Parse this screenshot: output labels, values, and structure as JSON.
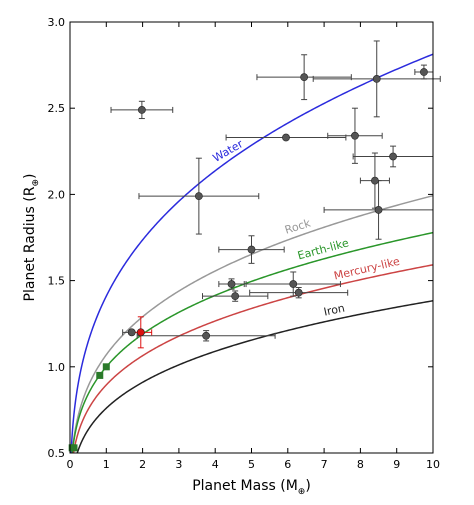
{
  "chart_data": {
    "type": "scatter",
    "xlabel_text": "Planet Mass (M",
    "xlabel_sub": "⊕",
    "xlabel_close": ")",
    "ylabel_text": "Planet Radius (R",
    "ylabel_sub": "⊕",
    "ylabel_close": ")",
    "xlim": [
      0,
      10
    ],
    "ylim": [
      0.5,
      3.0
    ],
    "xticks": [
      0,
      1,
      2,
      3,
      4,
      5,
      6,
      7,
      8,
      9,
      10
    ],
    "xtick_labels": [
      "0",
      "1",
      "2",
      "3",
      "4",
      "5",
      "6",
      "7",
      "8",
      "9",
      "10"
    ],
    "yticks": [
      0.5,
      1.0,
      1.5,
      2.0,
      2.5,
      3.0
    ],
    "ytick_labels": [
      "0.5",
      "1.0",
      "1.5",
      "2.0",
      "2.5",
      "3.0"
    ],
    "grid": false,
    "curves": [
      {
        "name": "Water",
        "color": "#2b2bdd",
        "coef": 1.41,
        "exponent": 0.3,
        "label_x": 4.4,
        "label_angle": -30
      },
      {
        "name": "Rock",
        "color": "#999999",
        "coef": 1.07,
        "exponent": 0.27,
        "label_x": 6.3,
        "label_angle": -17
      },
      {
        "name": "Earth-like",
        "color": "#2a962a",
        "coef": 1.0,
        "exponent": 0.25,
        "label_x": 7.0,
        "label_angle": -15
      },
      {
        "name": "Mercury-like",
        "color": "#cc4444",
        "coef": 0.895,
        "exponent": 0.25,
        "label_x": 8.2,
        "label_angle": -13
      },
      {
        "name": "Iron",
        "color": "#222222",
        "coef": 0.76,
        "exponent": 0.26,
        "label_x": 7.3,
        "label_angle": -12
      }
    ],
    "planets": [
      {
        "x": 1.98,
        "y": 2.49,
        "xerr": 0.85,
        "yerr": 0.05,
        "color": "#555555"
      },
      {
        "x": 3.55,
        "y": 1.99,
        "xerr": 1.65,
        "yerr": 0.22,
        "color": "#555555"
      },
      {
        "x": 6.45,
        "y": 2.68,
        "xerr": 1.3,
        "yerr": 0.13,
        "color": "#555555"
      },
      {
        "x": 5.95,
        "y": 2.33,
        "xerr": 1.65,
        "yerr": 0.01,
        "color": "#555555"
      },
      {
        "x": 7.85,
        "y": 2.34,
        "xerr": 0.75,
        "yerr": 0.16,
        "color": "#555555"
      },
      {
        "x": 8.45,
        "y": 2.67,
        "xerr": 1.75,
        "yerr": 0.22,
        "color": "#555555"
      },
      {
        "x": 9.75,
        "y": 2.71,
        "xerr": 0.25,
        "yerr": 0.04,
        "color": "#555555"
      },
      {
        "x": 8.4,
        "y": 2.08,
        "xerr": 0.4,
        "yerr": 0.16,
        "color": "#555555"
      },
      {
        "x": 8.9,
        "y": 2.22,
        "xerr": 1.1,
        "yerr": 0.06,
        "color": "#555555"
      },
      {
        "x": 8.5,
        "y": 1.91,
        "xerr": 1.5,
        "yerr": 0.17,
        "color": "#555555"
      },
      {
        "x": 5.0,
        "y": 1.68,
        "xerr": 0.9,
        "yerr": 0.08,
        "color": "#555555"
      },
      {
        "x": 4.45,
        "y": 1.48,
        "xerr": 0.35,
        "yerr": 0.03,
        "color": "#555555"
      },
      {
        "x": 4.55,
        "y": 1.41,
        "xerr": 0.9,
        "yerr": 0.03,
        "color": "#555555"
      },
      {
        "x": 6.15,
        "y": 1.48,
        "xerr": 1.3,
        "yerr": 0.07,
        "color": "#555555"
      },
      {
        "x": 6.3,
        "y": 1.43,
        "xerr": 1.35,
        "yerr": 0.03,
        "color": "#555555"
      },
      {
        "x": 3.75,
        "y": 1.18,
        "xerr": 1.9,
        "yerr": 0.03,
        "color": "#555555"
      },
      {
        "x": 1.7,
        "y": 1.2,
        "xerr": 0.25,
        "yerr": 0.0,
        "color": "#555555"
      },
      {
        "x": 1.95,
        "y": 1.2,
        "xerr": 0.3,
        "yerr": 0.09,
        "color": "#dd1111"
      }
    ],
    "solar_system": [
      {
        "x": 0.06,
        "y": 0.53,
        "color": "#2a7a2a"
      },
      {
        "x": 0.11,
        "y": 0.53,
        "color": "#2a7a2a"
      },
      {
        "x": 0.82,
        "y": 0.95,
        "color": "#2a7a2a"
      },
      {
        "x": 1.0,
        "y": 1.0,
        "color": "#2a7a2a"
      }
    ]
  }
}
